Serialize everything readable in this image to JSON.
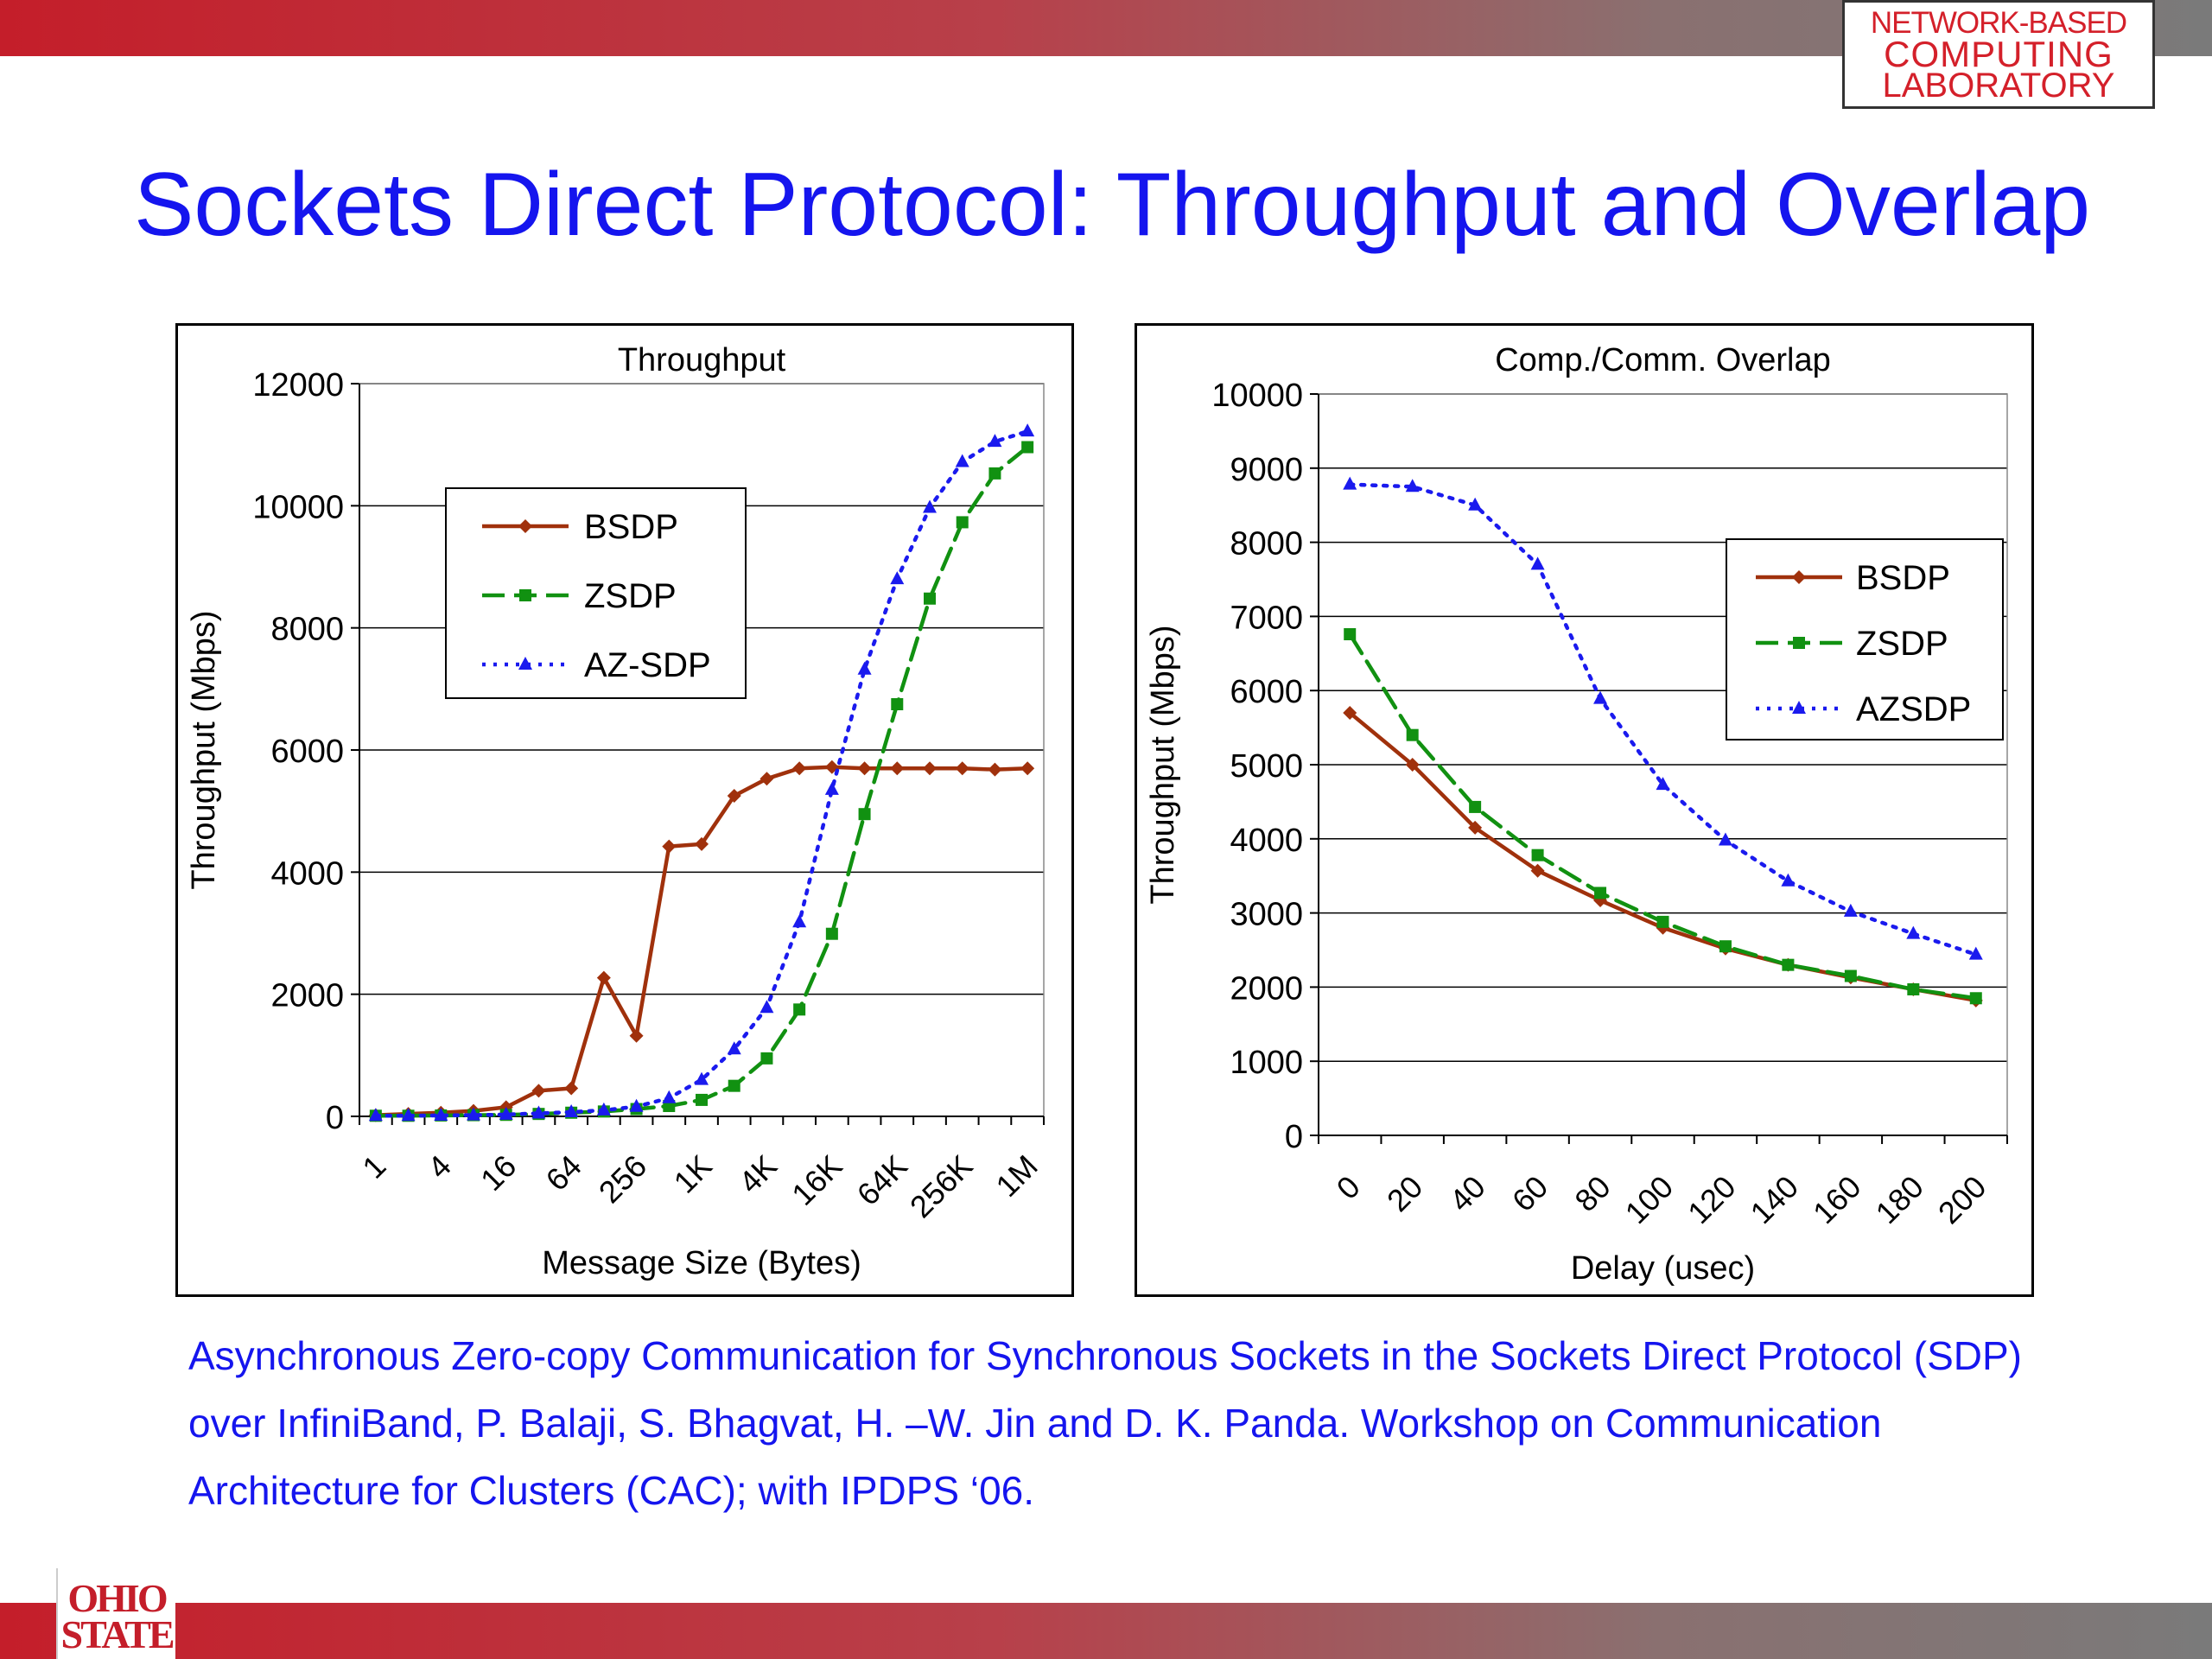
{
  "slide": {
    "title": "Sockets Direct Protocol: Throughput and Overlap",
    "lab_logo": [
      "NETWORK-BASED",
      "COMPUTING",
      "LABORATORY"
    ],
    "university_logo": [
      "OHIO",
      "STATE"
    ],
    "citation": "Asynchronous Zero-copy Communication for Synchronous Sockets in the Sockets Direct Protocol (SDP) over InfiniBand, P. Balaji, S. Bhagvat, H. –W. Jin and D. K. Panda. Workshop on Communication Architecture for Clusters (CAC); with IPDPS ‘06.",
    "colors": {
      "title": "#1515ee",
      "brand_red": "#c41e2a"
    }
  },
  "chart_data": [
    {
      "type": "line",
      "title": "Throughput",
      "xlabel": "Message Size (Bytes)",
      "ylabel": "Throughput (Mbps)",
      "ylim": [
        0,
        12000
      ],
      "yticks": [
        0,
        2000,
        4000,
        6000,
        8000,
        10000,
        12000
      ],
      "categories": [
        "1",
        "2",
        "4",
        "8",
        "16",
        "32",
        "64",
        "128",
        "256",
        "512",
        "1K",
        "2K",
        "4K",
        "8K",
        "16K",
        "32K",
        "64K",
        "128K",
        "256K",
        "512K",
        "1M"
      ],
      "tick_labels": [
        "1",
        "4",
        "16",
        "64",
        "256",
        "1K",
        "4K",
        "16K",
        "64K",
        "256K",
        "1M"
      ],
      "grid": true,
      "legend_position": "top-left",
      "series": [
        {
          "name": "BSDP",
          "color": "#a0310c",
          "marker": "diamond",
          "dash": "solid",
          "values": [
            20,
            40,
            60,
            90,
            150,
            420,
            460,
            2270,
            1320,
            4420,
            4460,
            5250,
            5530,
            5700,
            5720,
            5700,
            5700,
            5700,
            5700,
            5680,
            5700
          ]
        },
        {
          "name": "ZSDP",
          "color": "#119111",
          "marker": "square",
          "dash": "long-dash",
          "values": [
            10,
            10,
            15,
            20,
            25,
            40,
            60,
            80,
            120,
            170,
            270,
            500,
            950,
            1750,
            2990,
            4950,
            6750,
            8480,
            9730,
            10530,
            10960
          ]
        },
        {
          "name": "AZ-SDP",
          "color": "#1a1aee",
          "marker": "triangle",
          "dash": "dotted",
          "values": [
            10,
            10,
            15,
            20,
            30,
            50,
            70,
            100,
            160,
            300,
            600,
            1100,
            1780,
            3180,
            5350,
            7320,
            8800,
            9970,
            10720,
            11050,
            11220
          ]
        }
      ]
    },
    {
      "type": "line",
      "title": "Comp./Comm. Overlap",
      "xlabel": "Delay (usec)",
      "ylabel": "Throughput (Mbps)",
      "ylim": [
        0,
        10000
      ],
      "yticks": [
        0,
        1000,
        2000,
        3000,
        4000,
        5000,
        6000,
        7000,
        8000,
        9000,
        10000
      ],
      "x": [
        0,
        20,
        40,
        60,
        80,
        100,
        120,
        140,
        160,
        180,
        200
      ],
      "tick_labels": [
        "0",
        "20",
        "40",
        "60",
        "80",
        "100",
        "120",
        "140",
        "160",
        "180",
        "200"
      ],
      "grid": true,
      "legend_position": "top-right",
      "series": [
        {
          "name": "BSDP",
          "color": "#a0310c",
          "marker": "diamond",
          "dash": "solid",
          "values": [
            5700,
            5000,
            4150,
            3570,
            3170,
            2800,
            2520,
            2300,
            2130,
            1970,
            1820
          ]
        },
        {
          "name": "ZSDP",
          "color": "#119111",
          "marker": "square",
          "dash": "long-dash",
          "values": [
            6760,
            5400,
            4430,
            3780,
            3270,
            2880,
            2550,
            2300,
            2150,
            1970,
            1850
          ]
        },
        {
          "name": "AZSDP",
          "color": "#1a1aee",
          "marker": "triangle",
          "dash": "dotted",
          "values": [
            8780,
            8750,
            8500,
            7700,
            5890,
            4730,
            3980,
            3430,
            3020,
            2720,
            2440
          ]
        }
      ]
    }
  ]
}
